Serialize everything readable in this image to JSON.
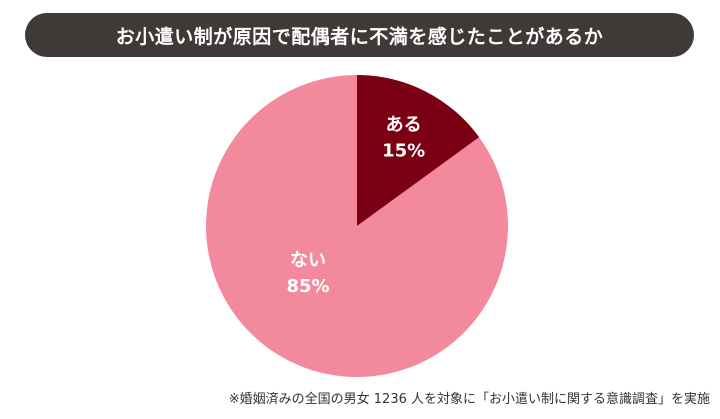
{
  "title": "お小遣い制が原因で配偶者に不満を感じたことがあるか",
  "footnote": "※婚姻済みの全国の男女 1236 人を対象に「お小遣い制に関する意識調査」を実施",
  "chart_data": {
    "type": "pie",
    "title": "お小遣い制が原因で配偶者に不満を感じたことがあるか",
    "slices": [
      {
        "label": "ある",
        "value": 15,
        "value_label": "15%",
        "color": "#7b0014"
      },
      {
        "label": "ない",
        "value": 85,
        "value_label": "85%",
        "color": "#f3899c"
      }
    ],
    "start_angle": "12 o'clock",
    "direction": "clockwise",
    "legend": "none (labels inside slices)"
  }
}
